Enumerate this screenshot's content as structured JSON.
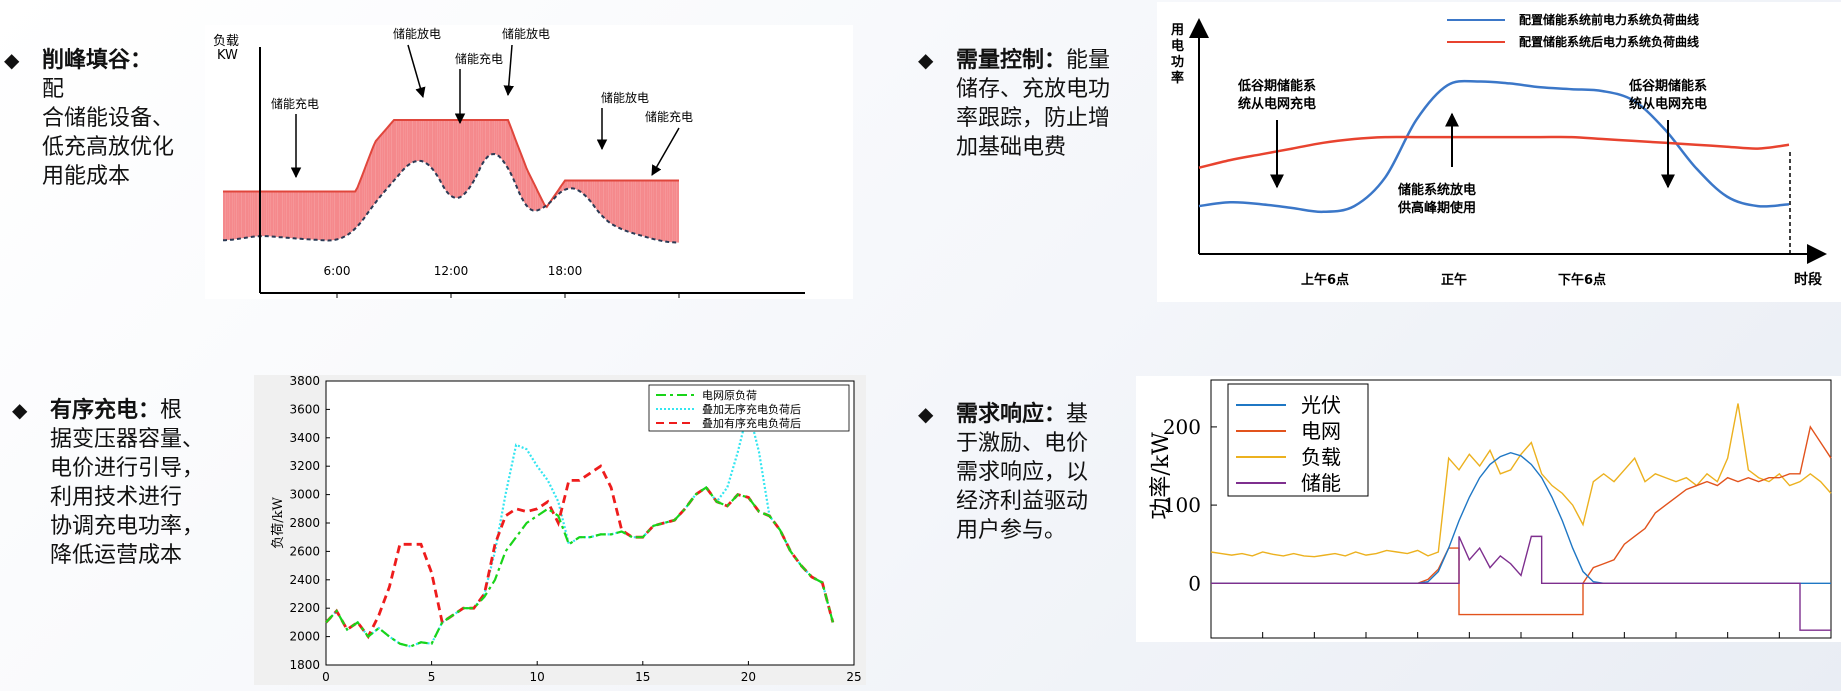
{
  "bullets": [
    {
      "title": "削峰填谷",
      "sep": "：",
      "lines": [
        "配",
        "合储能设备、",
        "低充高放优化",
        "用能成本"
      ]
    },
    {
      "title": "需量控制",
      "sep": "：",
      "lines": [
        "能量",
        "储存、充放电功",
        "率跟踪，防止增",
        "加基础电费"
      ]
    },
    {
      "title": "有序充电",
      "sep": "：",
      "lines": [
        "根",
        "据变压器容量、",
        "电价进行引导，",
        "利用技术进行",
        "协调充电功率，",
        "降低运营成本"
      ]
    },
    {
      "title": "需求响应",
      "sep": "：",
      "lines": [
        "基",
        "于激励、电价",
        "需求响应，以",
        "经济利益驱动",
        "用户参与。"
      ]
    }
  ],
  "chart_data": [
    {
      "type": "area",
      "ylabel_top": "负载",
      "ylabel_unit": "KW",
      "tick_labels": [
        "6:00",
        "12:00",
        "18:00"
      ],
      "annotations": [
        "储能放电",
        "储能充电",
        "储能放电",
        "储能充电",
        "储能放电",
        "储能充电"
      ],
      "x": [
        0,
        2,
        4,
        6,
        7,
        8,
        9,
        10,
        11,
        12,
        13,
        14,
        15,
        16,
        17,
        18,
        19,
        20,
        21,
        22,
        23,
        24
      ],
      "load_kw": [
        40,
        45,
        42,
        40,
        50,
        75,
        95,
        115,
        110,
        75,
        85,
        125,
        110,
        65,
        70,
        90,
        85,
        60,
        50,
        45,
        40,
        38
      ],
      "flattened_load_kw": [
        85,
        85,
        85,
        85,
        85,
        130,
        150,
        150,
        150,
        150,
        150,
        150,
        150,
        105,
        70,
        95,
        95,
        95,
        95,
        95,
        95,
        95
      ],
      "colors": {
        "discharge": "#19c8f0",
        "charge": "#f5898c",
        "load": "#2a3a55",
        "flattened": "#e0463c"
      }
    },
    {
      "type": "line",
      "ylabel": "用电功率",
      "xlabel": "时段",
      "tick_labels": [
        "上午6点",
        "正午",
        "下午6点"
      ],
      "series": [
        {
          "name": "配置储能系统前电力系统负荷曲线",
          "color": "#3b77c8",
          "values": [
            25,
            27,
            26,
            24,
            22,
            25,
            40,
            70,
            88,
            90,
            89,
            87,
            86,
            85,
            80,
            65,
            45,
            30,
            25,
            26
          ]
        },
        {
          "name": "配置储能系统后电力系统负荷曲线",
          "color": "#e8432f",
          "values": [
            45,
            49,
            52,
            55,
            58,
            60,
            61,
            61,
            61,
            61,
            61,
            61,
            61,
            60,
            59,
            58,
            57,
            56,
            55,
            57
          ]
        }
      ],
      "annotations": [
        "低谷期储能系统从电网充电",
        "储能系统放电供高峰期使用",
        "低谷期储能系统从电网充电"
      ],
      "ylim": [
        0,
        120
      ]
    },
    {
      "type": "line",
      "ylabel": "负荷/kW",
      "xlim": [
        0,
        25
      ],
      "ylim": [
        1800,
        3800
      ],
      "xticks": [
        0,
        5,
        10,
        15,
        20,
        25
      ],
      "yticks": [
        1800,
        2000,
        2200,
        2400,
        2600,
        2800,
        3000,
        3200,
        3400,
        3600,
        3800
      ],
      "x": [
        0,
        0.5,
        1,
        1.5,
        2,
        2.5,
        3,
        3.5,
        4,
        4.5,
        5,
        5.5,
        6,
        6.5,
        7,
        7.5,
        8,
        8.5,
        9,
        9.5,
        10,
        10.5,
        11,
        11.5,
        12,
        12.5,
        13,
        13.5,
        14,
        14.5,
        15,
        15.5,
        16,
        16.5,
        17,
        17.5,
        18,
        18.5,
        19,
        19.5,
        20,
        20.5,
        21,
        21.5,
        22,
        22.5,
        23,
        23.5,
        24
      ],
      "series": [
        {
          "name": "电网原负荷",
          "color": "#19d419",
          "values": [
            2100,
            2180,
            2050,
            2100,
            2000,
            2060,
            2000,
            1950,
            1930,
            1960,
            1950,
            2100,
            2150,
            2200,
            2200,
            2280,
            2400,
            2600,
            2700,
            2800,
            2850,
            2900,
            2850,
            2650,
            2700,
            2700,
            2720,
            2720,
            2740,
            2700,
            2700,
            2780,
            2800,
            2820,
            2900,
            3000,
            3050,
            2950,
            2920,
            3000,
            2980,
            2880,
            2850,
            2750,
            2600,
            2500,
            2420,
            2380,
            2100
          ]
        },
        {
          "name": "叠加无序充电负荷后",
          "color": "#33e5f0",
          "values": [
            2100,
            2180,
            2050,
            2100,
            2000,
            2060,
            2000,
            1950,
            1930,
            1960,
            1950,
            2100,
            2150,
            2200,
            2200,
            2300,
            2600,
            3000,
            3350,
            3320,
            3200,
            3100,
            2950,
            2650,
            2700,
            2700,
            2720,
            2720,
            2740,
            2700,
            2700,
            2780,
            2800,
            2820,
            2900,
            3000,
            3050,
            2950,
            3050,
            3300,
            3600,
            3300,
            2850,
            2750,
            2600,
            2500,
            2420,
            2380,
            2100
          ]
        },
        {
          "name": "叠加有序充电负荷后",
          "color": "#ee1c1c",
          "values": [
            2100,
            2180,
            2050,
            2100,
            2000,
            2150,
            2350,
            2650,
            2650,
            2650,
            2450,
            2100,
            2150,
            2200,
            2200,
            2300,
            2650,
            2850,
            2900,
            2880,
            2900,
            2950,
            2800,
            3100,
            3100,
            3150,
            3200,
            3050,
            2750,
            2700,
            2700,
            2780,
            2800,
            2820,
            2900,
            3000,
            3050,
            2950,
            2920,
            3000,
            2980,
            2880,
            2850,
            2750,
            2600,
            2500,
            2420,
            2380,
            2100
          ]
        }
      ]
    },
    {
      "type": "line",
      "ylabel": "功率/kW",
      "yticks": [
        0,
        100,
        200
      ],
      "ylim": [
        -70,
        260
      ],
      "series": [
        {
          "name": "光伏",
          "color": "#1f77c4",
          "values": [
            0,
            0,
            0,
            0,
            0,
            0,
            0,
            0,
            0,
            0,
            0,
            0,
            0,
            0,
            0,
            0,
            0,
            0,
            0,
            0,
            0,
            2,
            15,
            45,
            80,
            110,
            135,
            152,
            162,
            167,
            163,
            152,
            135,
            110,
            80,
            45,
            15,
            2,
            0,
            0,
            0,
            0,
            0,
            0,
            0,
            0,
            0,
            0,
            0,
            0,
            0,
            0,
            0,
            0,
            0,
            0,
            0,
            0,
            0,
            0,
            0
          ]
        },
        {
          "name": "电网",
          "color": "#e2531d",
          "values": [
            0,
            0,
            0,
            0,
            0,
            0,
            0,
            0,
            0,
            0,
            0,
            0,
            0,
            0,
            0,
            0,
            0,
            0,
            0,
            0,
            0,
            5,
            18,
            45,
            -40,
            -40,
            -40,
            -40,
            -40,
            -40,
            -40,
            -40,
            -40,
            -40,
            -40,
            -40,
            0,
            20,
            25,
            30,
            50,
            60,
            70,
            90,
            100,
            110,
            120,
            125,
            130,
            125,
            135,
            130,
            135,
            130,
            135,
            135,
            140,
            140,
            200,
            180,
            160
          ]
        },
        {
          "name": "负载",
          "color": "#ecb11f",
          "values": [
            40,
            38,
            36,
            38,
            35,
            40,
            37,
            35,
            38,
            35,
            34,
            36,
            38,
            35,
            40,
            36,
            38,
            42,
            40,
            38,
            42,
            35,
            40,
            160,
            145,
            165,
            150,
            170,
            140,
            145,
            165,
            180,
            140,
            125,
            115,
            100,
            75,
            130,
            140,
            130,
            145,
            160,
            130,
            140,
            135,
            130,
            135,
            125,
            140,
            130,
            160,
            230,
            145,
            135,
            130,
            140,
            125,
            130,
            140,
            130,
            115
          ]
        },
        {
          "name": "储能",
          "color": "#7e2f8e",
          "values": [
            0,
            0,
            0,
            0,
            0,
            0,
            0,
            0,
            0,
            0,
            0,
            0,
            0,
            0,
            0,
            0,
            0,
            0,
            0,
            0,
            0,
            0,
            0,
            0,
            60,
            30,
            45,
            20,
            35,
            25,
            10,
            60,
            0,
            0,
            0,
            0,
            0,
            0,
            0,
            0,
            0,
            0,
            0,
            0,
            0,
            0,
            0,
            0,
            0,
            0,
            0,
            0,
            0,
            0,
            0,
            0,
            0,
            -60,
            -60,
            -60,
            -60
          ]
        }
      ]
    }
  ]
}
